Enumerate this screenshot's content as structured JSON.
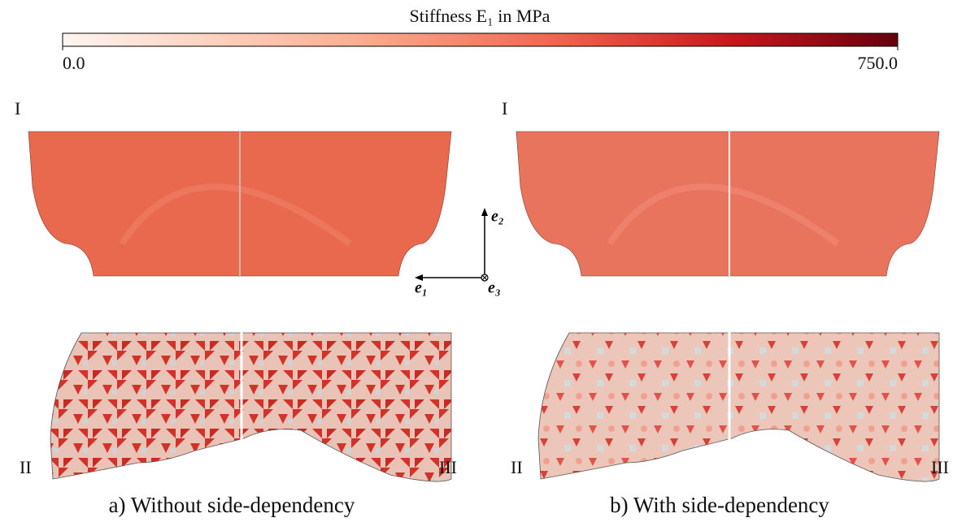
{
  "colorbar": {
    "title": "Stiffness E₁ in MPa",
    "lim": [
      0,
      750
    ],
    "ticks": [
      {
        "value": 0,
        "label": "0.0"
      },
      {
        "value": 750,
        "label": "750.0"
      }
    ]
  },
  "panels": [
    {
      "caption": "a) Without side-dependency",
      "labels": [
        "I",
        "II",
        "III"
      ]
    },
    {
      "caption": "b) With side-dependency",
      "labels": [
        "I",
        "II",
        "III"
      ]
    }
  ],
  "axes": {
    "e1": "e₁",
    "e2": "e₂",
    "e3": "e₃"
  }
}
